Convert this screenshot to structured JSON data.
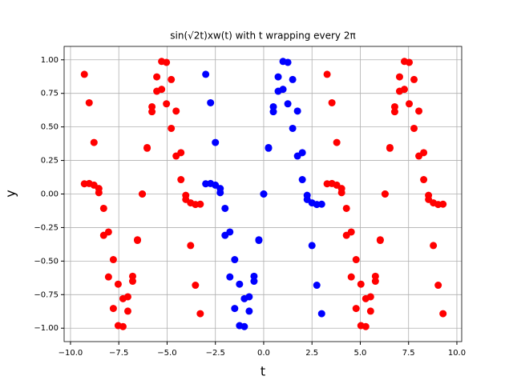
{
  "chart_data": {
    "type": "scatter",
    "title": "sin(√2t)xw(t) with t wrapping every 2π",
    "xlabel": "t",
    "ylabel": "y",
    "xlim": [
      -10.33,
      10.25
    ],
    "ylim": [
      -1.1,
      1.1
    ],
    "xticks": [
      {
        "value": -10,
        "label": "−10.0"
      },
      {
        "value": -7.5,
        "label": "−7.5"
      },
      {
        "value": -5,
        "label": "−5.0"
      },
      {
        "value": -2.5,
        "label": "−2.5"
      },
      {
        "value": 0,
        "label": "0.0"
      },
      {
        "value": 2.5,
        "label": "2.5"
      },
      {
        "value": 5,
        "label": "5.0"
      },
      {
        "value": 7.5,
        "label": "7.5"
      },
      {
        "value": 10,
        "label": "10.0"
      }
    ],
    "yticks": [
      {
        "value": -1,
        "label": "−1.00"
      },
      {
        "value": -0.75,
        "label": "−0.75"
      },
      {
        "value": -0.5,
        "label": "−0.50"
      },
      {
        "value": -0.25,
        "label": "−0.25"
      },
      {
        "value": 0,
        "label": "0.00"
      },
      {
        "value": 0.25,
        "label": "0.25"
      },
      {
        "value": 0.5,
        "label": "0.50"
      },
      {
        "value": 0.75,
        "label": "0.75"
      },
      {
        "value": 1,
        "label": "1.00"
      }
    ],
    "grid": true,
    "series": [
      {
        "color": "#ff0000",
        "x": [
          -9.283,
          -9.033,
          -8.783,
          -8.533,
          -8.283,
          -8.033,
          -7.783,
          -7.533,
          -7.283,
          -7.033,
          -6.783,
          -6.533,
          -6.283,
          -6.033,
          -5.783,
          -5.533,
          -5.283,
          -5.033,
          -4.783,
          -4.533,
          -4.283,
          -4.033,
          -3.783,
          -3.533,
          -3.283,
          3.283,
          3.533,
          3.783,
          4.033,
          4.283,
          4.533,
          4.783,
          5.033,
          5.283,
          5.533,
          5.783,
          6.033,
          6.283,
          6.533,
          6.783,
          7.033,
          7.283,
          7.533,
          7.783,
          8.033,
          8.283,
          8.533,
          8.783,
          9.033,
          9.283,
          -9.283,
          -9.033,
          -8.783,
          -8.533,
          -8.283,
          -8.033,
          -7.783,
          -7.533,
          -7.283,
          -7.033,
          -6.783,
          -6.533,
          -6.283,
          -6.033,
          -5.783,
          -5.533,
          -5.283,
          -5.033,
          -4.783,
          -4.533,
          -4.283,
          -4.033,
          -3.783,
          -3.533,
          -3.283,
          3.283,
          3.533,
          3.783,
          4.033,
          4.283,
          4.533,
          4.783,
          5.033,
          5.283,
          5.533,
          5.783,
          6.033,
          6.283,
          6.533,
          6.783,
          7.033,
          7.283,
          7.533,
          7.783,
          8.033,
          8.283,
          8.533,
          8.783,
          9.033,
          9.283
        ],
        "values": [
          0.892,
          0.68,
          0.384,
          0.041,
          -0.308,
          -0.618,
          -0.853,
          -0.981,
          -0.988,
          -0.873,
          -0.65,
          -0.346,
          0,
          0.346,
          0.65,
          0.873,
          0.988,
          0.981,
          0.853,
          0.618,
          0.308,
          -0.041,
          -0.384,
          -0.68,
          -0.892,
          0.892,
          0.68,
          0.384,
          0.041,
          -0.308,
          -0.618,
          -0.853,
          -0.981,
          -0.988,
          -0.873,
          -0.65,
          -0.346,
          0,
          0.346,
          0.65,
          0.873,
          0.988,
          0.981,
          0.853,
          0.618,
          0.308,
          -0.041,
          -0.384,
          -0.68,
          -0.892,
          0.076,
          0.078,
          0.066,
          0.01,
          -0.107,
          -0.283,
          -0.489,
          -0.672,
          -0.78,
          -0.766,
          -0.613,
          -0.341,
          0,
          0.341,
          0.613,
          0.766,
          0.78,
          0.672,
          0.489,
          0.283,
          0.107,
          -0.01,
          -0.066,
          -0.078,
          -0.076,
          0.076,
          0.078,
          0.066,
          0.01,
          -0.107,
          -0.283,
          -0.489,
          -0.672,
          -0.78,
          -0.766,
          -0.613,
          -0.341,
          0,
          0.341,
          0.613,
          0.766,
          0.78,
          0.672,
          0.489,
          0.283,
          0.107,
          -0.01,
          -0.066,
          -0.078,
          -0.076
        ]
      },
      {
        "color": "#0000ff",
        "x": [
          -3,
          -2.75,
          -2.5,
          -2.25,
          -2,
          -1.75,
          -1.5,
          -1.25,
          -1,
          -0.75,
          -0.5,
          -0.25,
          0,
          0.25,
          0.5,
          0.75,
          1,
          1.25,
          1.5,
          1.75,
          2,
          2.25,
          2.5,
          2.75,
          3,
          -3,
          -2.75,
          -2.5,
          -2.25,
          -2,
          -1.75,
          -1.5,
          -1.25,
          -1,
          -0.75,
          -0.5,
          -0.25,
          0,
          0.25,
          0.5,
          0.75,
          1,
          1.25,
          1.5,
          1.75,
          2,
          2.25,
          2.5,
          2.75,
          3
        ],
        "values": [
          0.892,
          0.68,
          0.384,
          0.041,
          -0.308,
          -0.618,
          -0.853,
          -0.981,
          -0.988,
          -0.873,
          -0.65,
          -0.346,
          0,
          0.346,
          0.65,
          0.873,
          0.988,
          0.981,
          0.853,
          0.618,
          0.308,
          -0.041,
          -0.384,
          -0.68,
          -0.892,
          0.076,
          0.078,
          0.066,
          0.01,
          -0.107,
          -0.283,
          -0.489,
          -0.672,
          -0.78,
          -0.766,
          -0.613,
          -0.341,
          0,
          0.341,
          0.613,
          0.766,
          0.78,
          0.672,
          0.489,
          0.283,
          0.107,
          -0.01,
          -0.066,
          -0.078,
          -0.076
        ]
      }
    ]
  }
}
